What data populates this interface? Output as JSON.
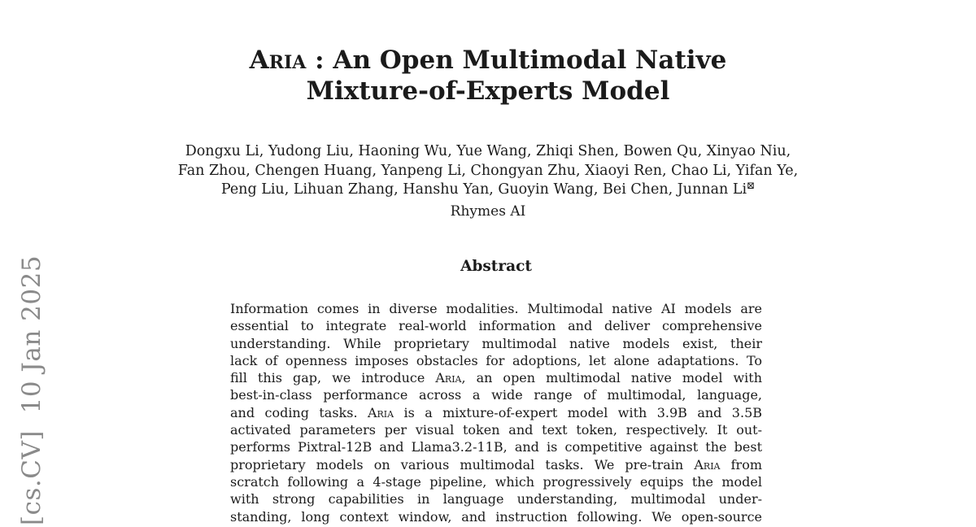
{
  "colors": {
    "background": "#ffffff",
    "text": "#1b1b1b",
    "arxiv_stamp": "#8a8a8a"
  },
  "arxiv_stamp": {
    "text": "[cs.CV]  10 Jan 2025"
  },
  "title": {
    "line1": "[[Aria]] : An Open Multimodal Native",
    "line2": "Mixture-of-Experts Model"
  },
  "authors": {
    "line1": "Dongxu Li, Yudong Liu, Haoning Wu, Yue Wang, Zhiqi Shen, Bowen Qu, Xinyao Niu,",
    "line2": "Fan Zhou, Chengen Huang, Yanpeng Li, Chongyan Zhu, Xiaoyi Ren, Chao Li, Yifan Ye,",
    "line3": "Peng Liu, Lihuan Zhang, Hanshu Yan, Guoyin Wang, Bei Chen, Junnan Li",
    "envelope_icon": "⊠"
  },
  "affiliation": "Rhymes AI",
  "abstract": {
    "heading": "Abstract",
    "lines": [
      "Information comes in diverse modalities. Multimodal native AI models are",
      "essential to integrate real-world information and deliver comprehensive",
      "understanding. While proprietary multimodal native models exist, their",
      "lack of openness imposes obstacles for adoptions, let alone adaptations. To",
      "fill this gap, we introduce [[Aria]], an open multimodal native model with",
      "best-in-class performance across a wide range of multimodal, language,",
      "and coding tasks. [[Aria]] is a mixture-of-expert model with 3.9B and 3.5B",
      "activated parameters per visual token and text token, respectively. It out-",
      "performs Pixtral-12B and Llama3.2-11B, and is competitive against the best",
      "proprietary models on various multimodal tasks. We pre-train [[Aria]] from",
      "scratch following a 4-stage pipeline, which progressively equips the model",
      "with strong capabilities in language understanding, multimodal under-",
      "standing, long context window, and instruction following. We open-source"
    ]
  }
}
